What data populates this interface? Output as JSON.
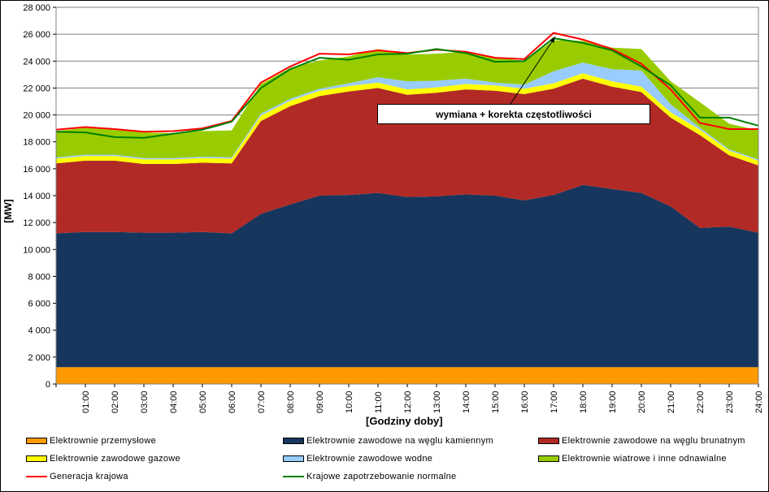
{
  "chart_data": {
    "type": "area",
    "xlabel": "[Godziny doby]",
    "ylabel": "[MW]",
    "ylim": [
      0,
      28000
    ],
    "y_ticks": [
      "0",
      "2 000",
      "4 000",
      "6 000",
      "8 000",
      "10 000",
      "12 000",
      "14 000",
      "16 000",
      "18 000",
      "20 000",
      "22 000",
      "24 000",
      "26 000",
      "28 000"
    ],
    "x_ticks": [
      "01:00",
      "02:00",
      "03:00",
      "04:00",
      "05:00",
      "06:00",
      "07:00",
      "08:00",
      "09:00",
      "10:00",
      "11:00",
      "12:00",
      "13:00",
      "14:00",
      "15:00",
      "16:00",
      "17:00",
      "18:00",
      "19:00",
      "20:00",
      "21:00",
      "22:00",
      "23:00",
      "24:00"
    ],
    "x_hours": [
      0,
      1,
      2,
      3,
      4,
      5,
      6,
      7,
      8,
      9,
      10,
      11,
      12,
      13,
      14,
      15,
      16,
      17,
      18,
      19,
      20,
      21,
      22,
      23,
      24
    ],
    "grid": true,
    "legend_position": "bottom",
    "stacked_series": [
      {
        "name": "Elektrownie przemysłowe",
        "color": "#ff9900",
        "values": [
          1250,
          1250,
          1250,
          1250,
          1250,
          1250,
          1250,
          1250,
          1250,
          1250,
          1250,
          1250,
          1250,
          1250,
          1250,
          1250,
          1250,
          1250,
          1250,
          1250,
          1250,
          1250,
          1250,
          1250,
          1250
        ]
      },
      {
        "name": "Elektrownie zawodowe na węglu kamiennym",
        "color": "#17365d",
        "values": [
          9950,
          10050,
          10050,
          10000,
          10000,
          10050,
          9950,
          11400,
          12100,
          12750,
          12800,
          12950,
          12650,
          12700,
          12850,
          12750,
          12400,
          12800,
          13550,
          13250,
          12950,
          11950,
          10350,
          10450,
          10000
        ]
      },
      {
        "name": "Elektrownie zawodowe na węglu brunatnym",
        "color": "#b22a25",
        "values": [
          5200,
          5300,
          5300,
          5100,
          5100,
          5150,
          5200,
          6900,
          7300,
          7400,
          7700,
          7800,
          7600,
          7700,
          7800,
          7800,
          7900,
          7900,
          7900,
          7600,
          7500,
          6600,
          6900,
          5300,
          5000
        ]
      },
      {
        "name": "Elektrownie zawodowe gazowe",
        "color": "#ffff00",
        "values": [
          350,
          350,
          350,
          350,
          350,
          350,
          350,
          400,
          400,
          400,
          400,
          400,
          400,
          400,
          400,
          400,
          400,
          400,
          400,
          400,
          400,
          400,
          400,
          350,
          350
        ]
      },
      {
        "name": "Elektrownie zawodowe wodne",
        "color": "#99ccff",
        "values": [
          100,
          100,
          100,
          100,
          100,
          100,
          100,
          150,
          150,
          150,
          200,
          400,
          600,
          500,
          400,
          200,
          300,
          900,
          800,
          900,
          1200,
          600,
          150,
          100,
          100
        ]
      },
      {
        "name": "Elektrownie wiatrowe i inne odnawialne",
        "color": "#99cc00",
        "values": [
          1950,
          2000,
          1850,
          1900,
          1850,
          1900,
          2000,
          2200,
          2300,
          2100,
          2000,
          2100,
          2000,
          2000,
          2000,
          1900,
          1750,
          2300,
          1600,
          1600,
          1600,
          1700,
          1900,
          1900,
          2150
        ]
      }
    ],
    "line_series": [
      {
        "name": "Generacja krajowa",
        "color": "#ff0000",
        "values": [
          18900,
          19100,
          18950,
          18750,
          18800,
          19000,
          19550,
          22400,
          23600,
          24550,
          24500,
          24800,
          24600,
          24850,
          24700,
          24250,
          24150,
          26100,
          25600,
          24900,
          23800,
          21900,
          19400,
          18950,
          18950
        ]
      },
      {
        "name": "Krajowe zapotrzebowanie normalne",
        "color": "#008000",
        "values": [
          18750,
          18700,
          18350,
          18300,
          18600,
          18900,
          19500,
          22000,
          23400,
          24250,
          24100,
          24500,
          24550,
          24900,
          24600,
          23950,
          24000,
          25700,
          25350,
          24800,
          23600,
          22200,
          19800,
          19800,
          19200
        ]
      }
    ],
    "annotation": "wymiana + korekta częstotliwości"
  }
}
